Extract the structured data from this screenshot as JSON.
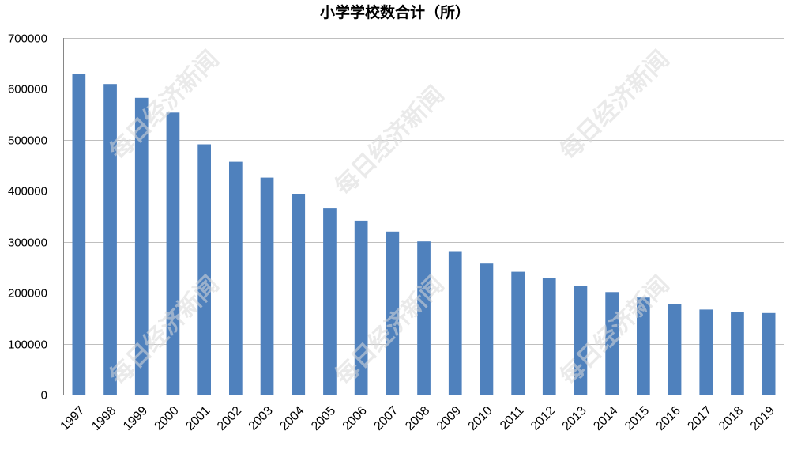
{
  "chart_data": {
    "type": "bar",
    "title": "小学学校数合计（所）",
    "xlabel": "",
    "ylabel": "",
    "ylim": [
      0,
      700000
    ],
    "yticks": [
      0,
      100000,
      200000,
      300000,
      400000,
      500000,
      600000,
      700000
    ],
    "categories": [
      "1997",
      "1998",
      "1999",
      "2000",
      "2001",
      "2002",
      "2003",
      "2004",
      "2005",
      "2006",
      "2007",
      "2008",
      "2009",
      "2010",
      "2011",
      "2012",
      "2013",
      "2014",
      "2015",
      "2016",
      "2017",
      "2018",
      "2019"
    ],
    "values": [
      628840,
      609626,
      582291,
      553622,
      491273,
      456903,
      425846,
      394183,
      366213,
      341639,
      320061,
      300854,
      280184,
      257410,
      241249,
      228585,
      213529,
      201377,
      190525,
      177633,
      167009,
      161811,
      160148
    ],
    "bar_color": "#4f81bd",
    "grid": true,
    "legend": "none",
    "watermark": "每日经济新闻"
  }
}
